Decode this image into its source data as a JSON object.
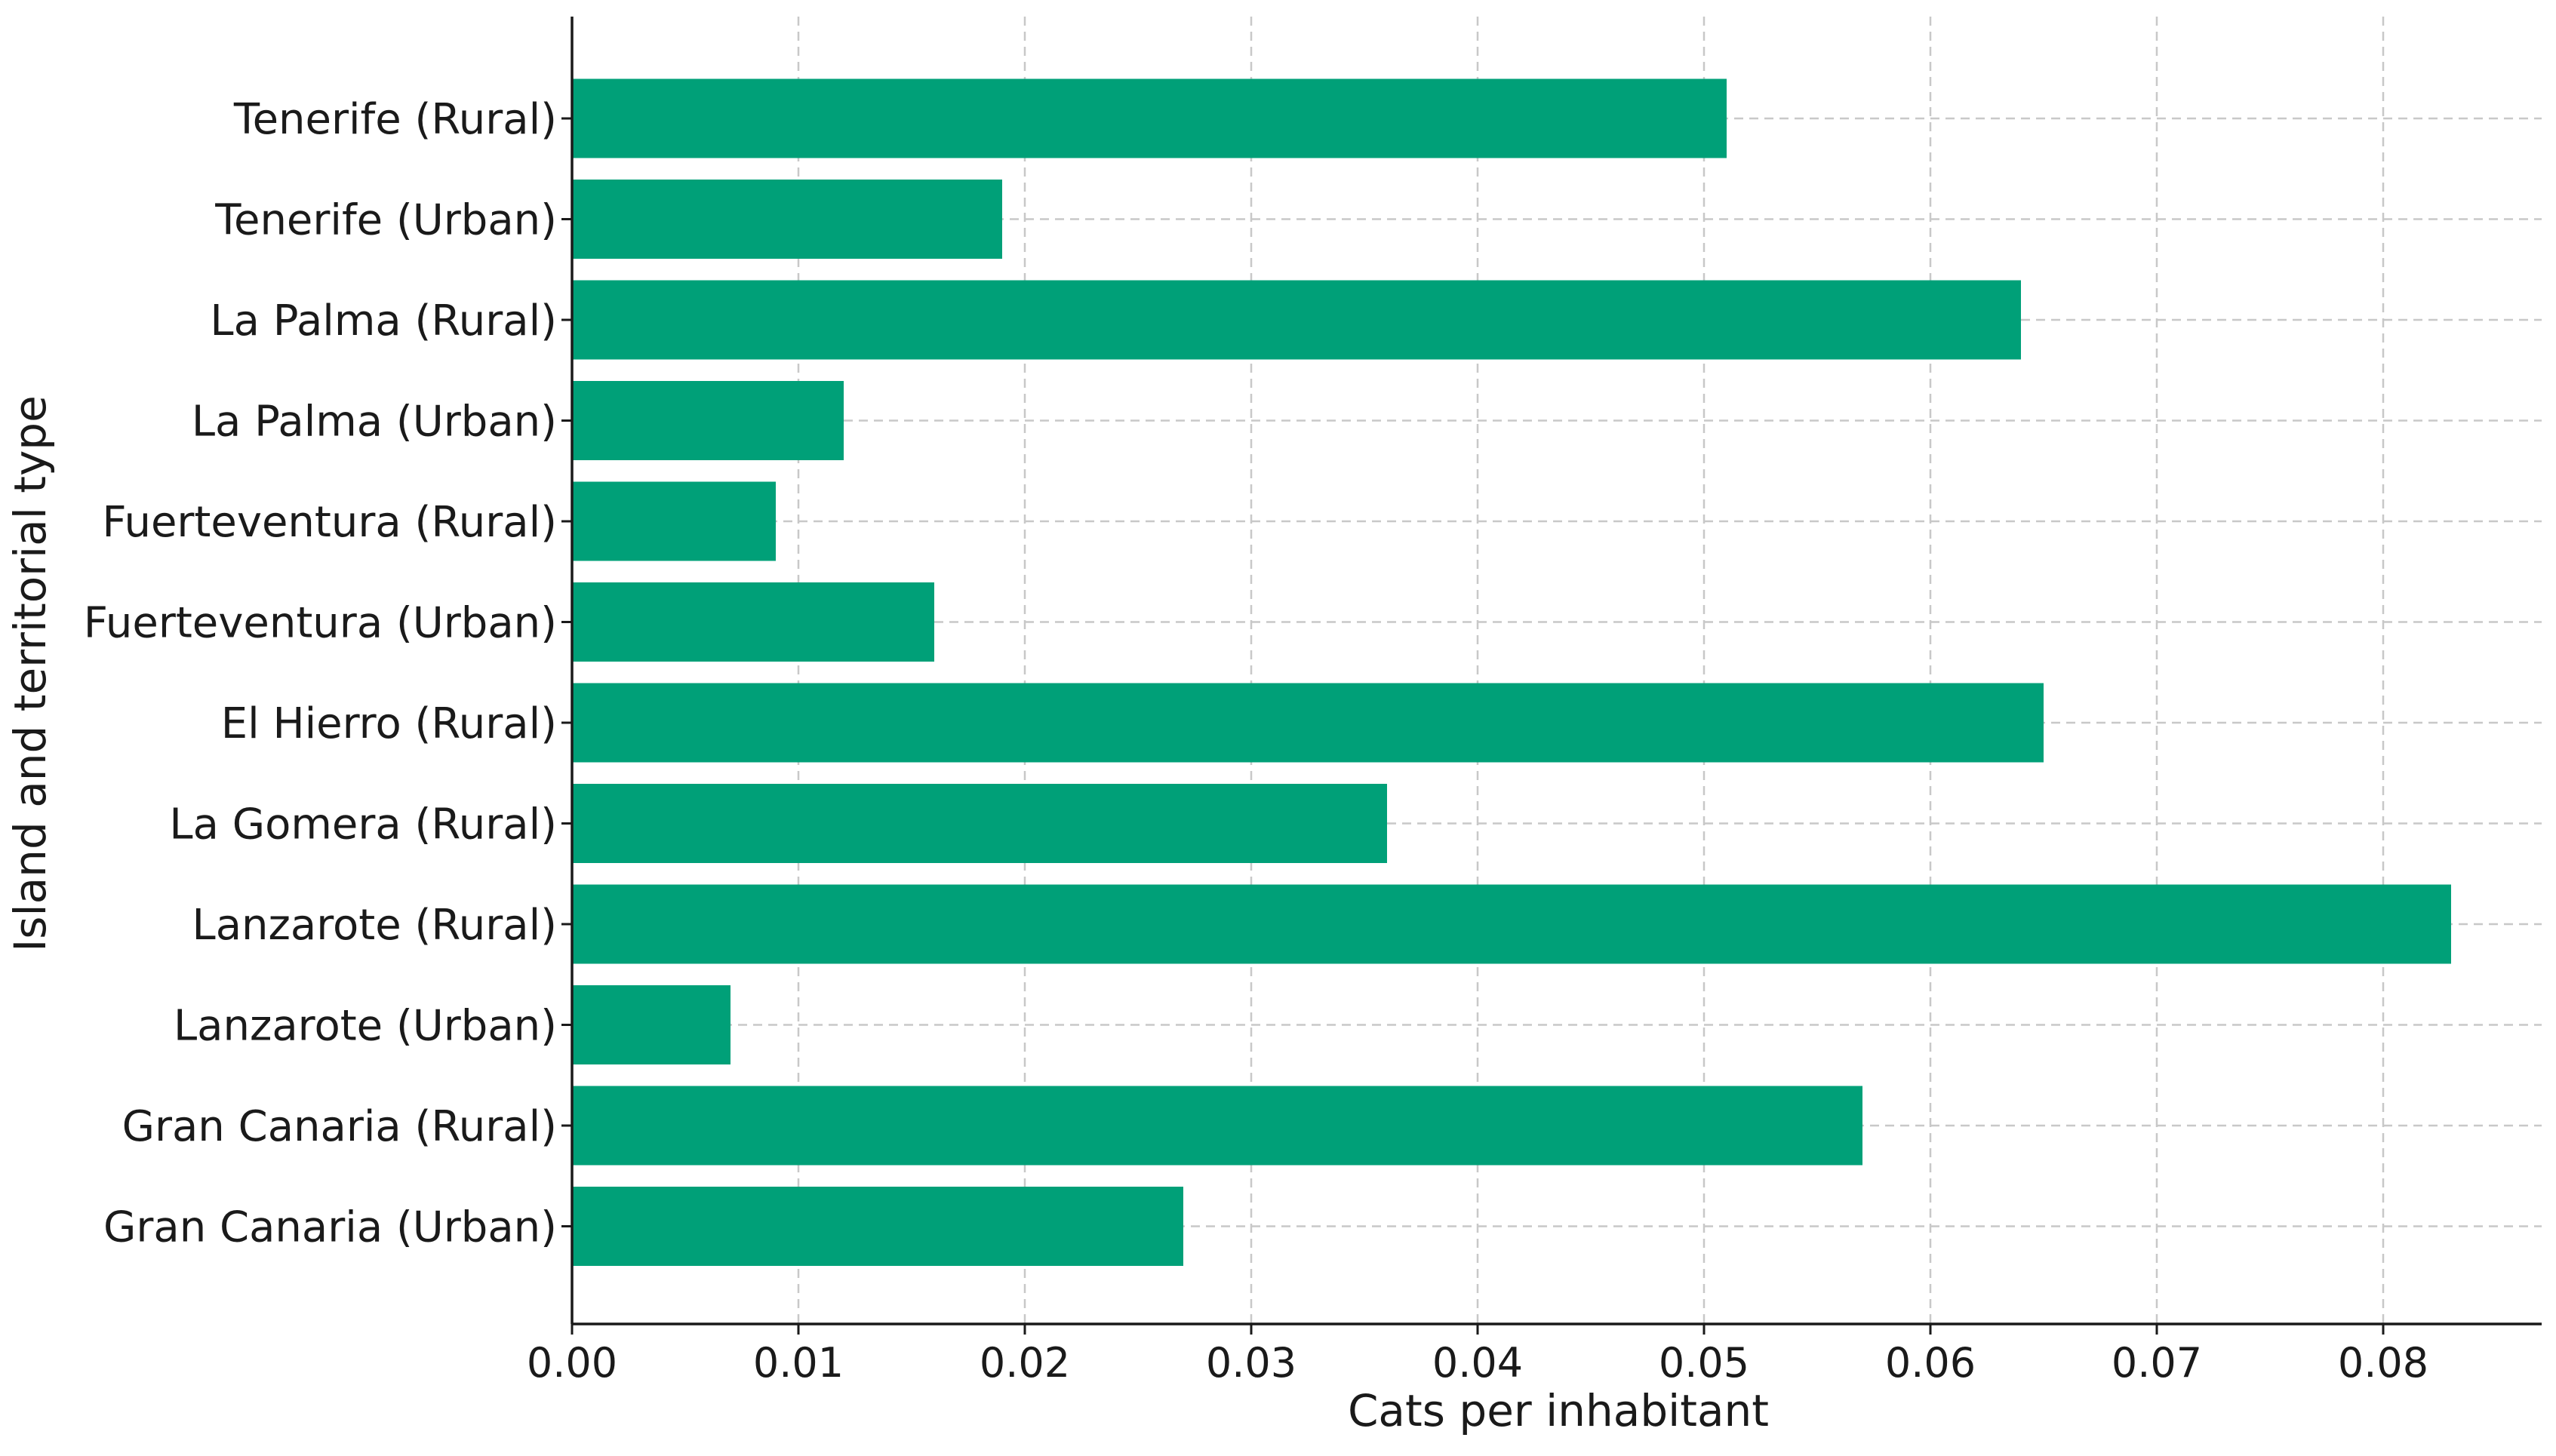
{
  "chart_data": {
    "type": "bar",
    "orientation": "horizontal",
    "xlabel": "Cats per inhabitant",
    "ylabel": "Island and territorial type",
    "xlim": [
      0,
      0.087
    ],
    "grid": true,
    "bar_color": "#00a078",
    "categories": [
      "Tenerife (Rural)",
      "Tenerife (Urban)",
      "La Palma (Rural)",
      "La Palma (Urban)",
      "Fuerteventura (Rural)",
      "Fuerteventura (Urban)",
      "El Hierro (Rural)",
      "La Gomera (Rural)",
      "Lanzarote (Rural)",
      "Lanzarote (Urban)",
      "Gran Canaria (Rural)",
      "Gran Canaria (Urban)"
    ],
    "values": [
      0.051,
      0.019,
      0.064,
      0.012,
      0.009,
      0.016,
      0.065,
      0.036,
      0.083,
      0.007,
      0.057,
      0.027
    ],
    "xticks": [
      "0.00",
      "0.01",
      "0.02",
      "0.03",
      "0.04",
      "0.05",
      "0.06",
      "0.07",
      "0.08"
    ]
  }
}
